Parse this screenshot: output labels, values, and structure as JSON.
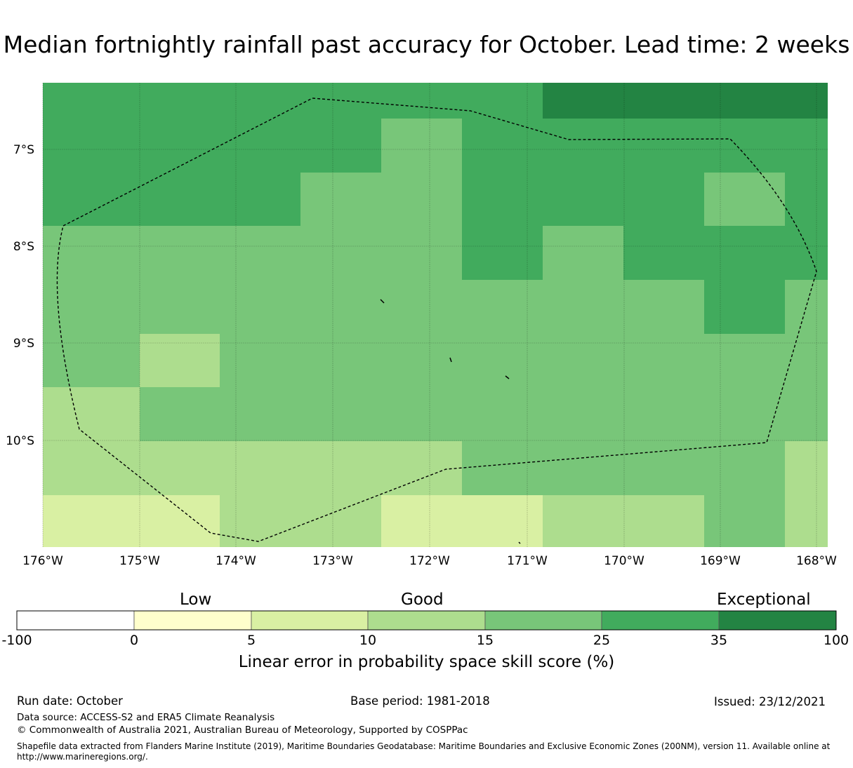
{
  "title": "Median fortnightly rainfall past accuracy for October. Lead time: 2 weeks",
  "map": {
    "lon_labels": [
      "176°W",
      "175°W",
      "174°W",
      "173°W",
      "172°W",
      "171°W",
      "170°W",
      "169°W",
      "168°W"
    ],
    "lat_labels": [
      "7°S",
      "8°S",
      "9°S",
      "10°S"
    ],
    "cell_class_grid": [
      [
        5,
        5,
        5,
        5,
        5,
        5,
        5,
        5,
        5,
        5,
        6,
        6,
        6,
        6,
        6
      ],
      [
        5,
        5,
        5,
        5,
        5,
        5,
        5,
        4,
        4,
        5,
        5,
        5,
        5,
        5,
        5
      ],
      [
        5,
        5,
        5,
        5,
        5,
        5,
        4,
        4,
        4,
        5,
        5,
        5,
        5,
        4,
        4,
        5
      ],
      [
        4,
        4,
        4,
        4,
        4,
        4,
        4,
        4,
        4,
        5,
        5,
        4,
        5,
        5,
        5,
        5
      ],
      [
        4,
        4,
        4,
        4,
        4,
        4,
        4,
        4,
        4,
        4,
        4,
        4,
        4,
        4,
        5,
        5,
        4
      ],
      [
        4,
        4,
        3,
        3,
        4,
        4,
        4,
        4,
        4,
        4,
        4,
        4,
        4,
        4,
        4,
        4
      ],
      [
        3,
        3,
        4,
        4,
        4,
        4,
        4,
        4,
        4,
        4,
        4,
        4,
        4,
        4,
        4,
        4
      ],
      [
        3,
        3,
        3,
        3,
        3,
        3,
        3,
        3,
        3,
        4,
        4,
        4,
        4,
        4,
        4,
        3
      ],
      [
        2,
        2,
        2,
        3,
        3,
        3,
        2,
        2,
        2,
        2,
        3,
        3,
        3,
        4,
        4,
        3
      ]
    ]
  },
  "colorbar": {
    "ticks": [
      "-100",
      "0",
      "5",
      "10",
      "15",
      "25",
      "35",
      "100"
    ],
    "colors": [
      "#ffffff",
      "#ffffcc",
      "#d9f0a3",
      "#addd8e",
      "#78c679",
      "#41ab5d",
      "#238443"
    ],
    "categories": [
      "Low",
      "Good",
      "Exceptional"
    ],
    "label": "Linear error in probability space skill score (%)"
  },
  "footer": {
    "run_date": "Run date: October",
    "base_period": "Base period: 1981-2018",
    "issued": "Issued: 23/12/2021",
    "data_source": "Data source: ACCESS-S2 and ERA5 Climate Reanalysis",
    "copyright": "© Commonwealth of Australia 2021, Australian Bureau of Meteorology, Supported by COSPPac",
    "shapefile_line1": "Shapefile data extracted from Flanders Marine Institute (2019), Maritime Boundaries Geodatabase: Maritime Boundaries and Exclusive Economic Zones (200NM), version 11. Available online at",
    "shapefile_line2": "http://www.marineregions.org/."
  }
}
